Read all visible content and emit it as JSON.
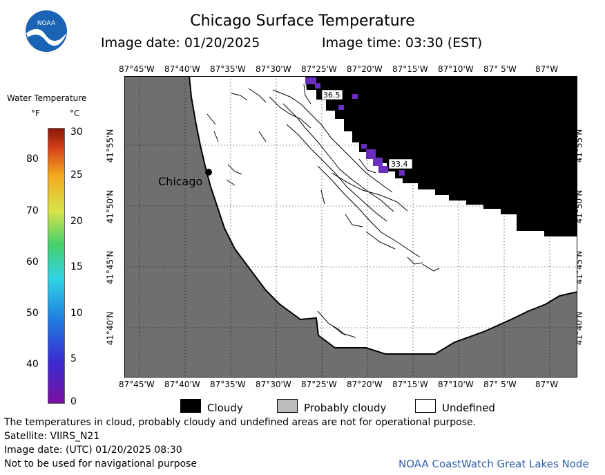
{
  "header": {
    "title": "Chicago Surface Temperature",
    "image_date": "Image date: 01/20/2025",
    "image_time": "Image time: 03:30 (EST)"
  },
  "logo": {
    "text": "NOAA"
  },
  "map": {
    "lon_labels": [
      "87°45'W",
      "87°40'W",
      "87°35'W",
      "87°30'W",
      "87°25'W",
      "87°20'W",
      "87°15'W",
      "87°10'W",
      "87° 5'W",
      "87°W"
    ],
    "lat_labels": [
      "41°55'N",
      "41°50'N",
      "41°45'N",
      "41°40'N"
    ],
    "city_label": "Chicago",
    "temp_labels": [
      "36.5",
      "33.4"
    ],
    "colors": {
      "land": "#6f6f6f",
      "cloudy": "#000000",
      "undefined": "#ffffff",
      "cold_water": "#6a2fc0"
    }
  },
  "colorbar": {
    "title": "Water Temperature",
    "unit_f": "°F",
    "unit_c": "°C",
    "f_ticks": [
      "80",
      "70",
      "60",
      "50",
      "40"
    ],
    "c_ticks": [
      "30",
      "25",
      "20",
      "15",
      "10",
      "5",
      "0"
    ],
    "range_c": [
      0,
      30
    ]
  },
  "legend": {
    "cloudy": "Cloudy",
    "probably_cloudy": "Probably cloudy",
    "undefined": "Undefined"
  },
  "footer": {
    "note": "The temperatures in cloud, probably cloudy and undefined areas are not for operational purpose.",
    "satellite": "Satellite: VIIRS_N21",
    "utc_date": "Image date: (UTC) 01/20/2025  08:30",
    "nav_warning": "Not to be used for navigational purpose",
    "credit": "NOAA CoastWatch Great Lakes Node"
  }
}
